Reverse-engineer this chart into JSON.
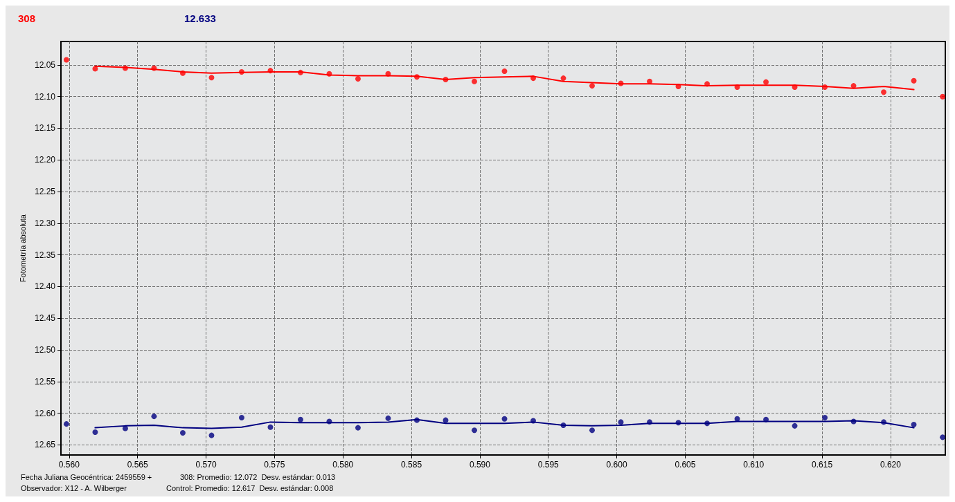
{
  "chart_data": {
    "type": "scatter",
    "ylabel": "Fotometría absoluta",
    "xlabel": "Fecha Juliana Geocéntrica: 2459559 +",
    "annotations": [
      "12.633",
      "Observador: X12 - A. Wilberger",
      "308: Promedio: 12.072  Desv. estándar: 0.013",
      "Control: Promedio: 12.617  Desv. estándar: 0.008"
    ],
    "xlim": [
      0.5594,
      0.624
    ],
    "ylim": [
      12.666,
      12.013
    ],
    "xticks": [
      {
        "value": 0.56,
        "label": "0.560"
      },
      0.565,
      {
        "value": 0.57,
        "label": "0.570"
      },
      0.575,
      {
        "value": 0.58,
        "label": "0.580"
      },
      0.585,
      {
        "value": 0.59,
        "label": "0.590"
      },
      0.595,
      {
        "value": 0.6,
        "label": "0.600"
      },
      0.605,
      {
        "value": 0.61,
        "label": "0.610"
      },
      0.615,
      {
        "value": 0.62,
        "label": "0.620"
      }
    ],
    "yticks": [
      12.05,
      {
        "value": 12.1,
        "label": "12.10"
      },
      12.15,
      {
        "value": 12.2,
        "label": "12.20"
      },
      12.25,
      {
        "value": 12.3,
        "label": "12.30"
      },
      12.35,
      {
        "value": 12.4,
        "label": "12.40"
      },
      12.45,
      {
        "value": 12.5,
        "label": "12.50"
      },
      12.55,
      {
        "value": 12.6,
        "label": "12.60"
      },
      12.65
    ],
    "grid": true,
    "legend": false,
    "marker": "circle",
    "line_style": "solid",
    "series": [
      {
        "name": "308",
        "color": "#ff0000",
        "x": [
          0.5598,
          0.5619,
          0.5641,
          0.5662,
          0.5683,
          0.5704,
          0.5726,
          0.5747,
          0.5769,
          0.579,
          0.5811,
          0.5833,
          0.5854,
          0.5875,
          0.5896,
          0.5918,
          0.5939,
          0.5961,
          0.5982,
          0.6003,
          0.6024,
          0.6045,
          0.6066,
          0.6088,
          0.6109,
          0.613,
          0.6152,
          0.6173,
          0.6195,
          0.6217,
          0.6238
        ],
        "values": [
          12.042,
          12.056,
          12.055,
          12.055,
          12.063,
          12.07,
          12.061,
          12.059,
          12.062,
          12.064,
          12.072,
          12.064,
          12.069,
          12.073,
          12.076,
          12.06,
          12.071,
          12.071,
          12.083,
          12.079,
          12.076,
          12.084,
          12.08,
          12.085,
          12.077,
          12.085,
          12.085,
          12.083,
          12.093,
          12.075,
          12.1
        ]
      },
      {
        "color": "#000080",
        "x": [
          0.5598,
          0.5619,
          0.5641,
          0.5662,
          0.5683,
          0.5704,
          0.5726,
          0.5747,
          0.5769,
          0.579,
          0.5811,
          0.5833,
          0.5854,
          0.5875,
          0.5896,
          0.5918,
          0.5939,
          0.5961,
          0.5982,
          0.6003,
          0.6024,
          0.6045,
          0.6066,
          0.6088,
          0.6109,
          0.613,
          0.6152,
          0.6173,
          0.6195,
          0.6217,
          0.6238
        ],
        "values": [
          12.617,
          12.63,
          12.624,
          12.605,
          12.631,
          12.635,
          12.607,
          12.622,
          12.61,
          12.613,
          12.623,
          12.608,
          12.611,
          12.611,
          12.627,
          12.609,
          12.612,
          12.619,
          12.627,
          12.614,
          12.614,
          12.615,
          12.616,
          12.609,
          12.61,
          12.62,
          12.607,
          12.613,
          12.614,
          12.618,
          12.638
        ]
      },
      {
        "type": "line",
        "marker": "none",
        "color": "#ff0000",
        "x": [
          0.5619,
          0.5641,
          0.5662,
          0.5683,
          0.5704,
          0.5726,
          0.5747,
          0.5769,
          0.579,
          0.5811,
          0.5833,
          0.5854,
          0.5875,
          0.5896,
          0.5918,
          0.5939,
          0.5961,
          0.5982,
          0.6003,
          0.6024,
          0.6045,
          0.6066,
          0.6088,
          0.6109,
          0.613,
          0.6152,
          0.6173,
          0.6195,
          0.6217
        ],
        "values": [
          12.052,
          12.054,
          12.057,
          12.061,
          12.063,
          12.062,
          12.061,
          12.061,
          12.066,
          12.067,
          12.067,
          12.068,
          12.073,
          12.07,
          12.069,
          12.068,
          12.076,
          12.078,
          12.08,
          12.08,
          12.081,
          12.083,
          12.082,
          12.082,
          12.082,
          12.084,
          12.087,
          12.084,
          12.089
        ]
      },
      {
        "type": "line",
        "marker": "none",
        "color": "#000080",
        "x": [
          0.5619,
          0.5641,
          0.5662,
          0.5683,
          0.5704,
          0.5726,
          0.5747,
          0.5769,
          0.579,
          0.5811,
          0.5833,
          0.5854,
          0.5875,
          0.5896,
          0.5918,
          0.5939,
          0.5961,
          0.5982,
          0.6003,
          0.6024,
          0.6045,
          0.6066,
          0.6088,
          0.6109,
          0.613,
          0.6152,
          0.6173,
          0.6195,
          0.6217
        ],
        "values": [
          12.623,
          12.62,
          12.619,
          12.623,
          12.624,
          12.622,
          12.614,
          12.615,
          12.615,
          12.615,
          12.614,
          12.61,
          12.616,
          12.616,
          12.616,
          12.614,
          12.619,
          12.62,
          12.619,
          12.616,
          12.616,
          12.616,
          12.613,
          12.613,
          12.613,
          12.613,
          12.612,
          12.615,
          12.623
        ]
      }
    ]
  }
}
